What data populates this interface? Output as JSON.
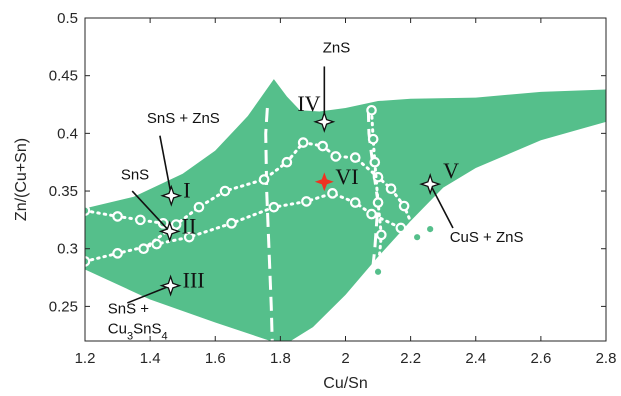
{
  "chart_data": {
    "type": "scatter",
    "xlabel": "Cu/Sn",
    "ylabel": "Zn/(Cu+Sn)",
    "xlim": [
      1.2,
      2.8
    ],
    "ylim": [
      0.22,
      0.5
    ],
    "x_ticks": [
      "1.2",
      "1.4",
      "1.6",
      "1.8",
      "2",
      "2.2",
      "2.4",
      "2.6",
      "2.8"
    ],
    "y_ticks": [
      "0.25",
      "0.3",
      "0.35",
      "0.4",
      "0.45",
      "0.5"
    ],
    "grid": false,
    "colors": {
      "region": "#55bf8b",
      "boundary": "#ffffff",
      "center_marker": "#ee3322",
      "markers": "#ffffff"
    },
    "region_upper": [
      [
        1.2,
        0.335
      ],
      [
        1.35,
        0.345
      ],
      [
        1.5,
        0.365
      ],
      [
        1.6,
        0.385
      ],
      [
        1.7,
        0.415
      ],
      [
        1.78,
        0.447
      ],
      [
        1.82,
        0.432
      ],
      [
        1.86,
        0.42
      ],
      [
        1.92,
        0.419
      ],
      [
        2.0,
        0.422
      ],
      [
        2.1,
        0.428
      ],
      [
        2.2,
        0.43
      ],
      [
        2.4,
        0.431
      ],
      [
        2.6,
        0.436
      ],
      [
        2.8,
        0.438
      ]
    ],
    "region_lower": [
      [
        2.8,
        0.41
      ],
      [
        2.6,
        0.394
      ],
      [
        2.4,
        0.37
      ],
      [
        2.3,
        0.353
      ],
      [
        2.2,
        0.324
      ],
      [
        2.1,
        0.293
      ],
      [
        2.0,
        0.26
      ],
      [
        1.9,
        0.232
      ],
      [
        1.82,
        0.218
      ],
      [
        1.77,
        0.22
      ],
      [
        1.6,
        0.236
      ],
      [
        1.4,
        0.256
      ],
      [
        1.2,
        0.282
      ]
    ],
    "dashed_boundaries": [
      [
        [
          1.76,
          0.422
        ],
        [
          1.755,
          0.4
        ],
        [
          1.758,
          0.35
        ],
        [
          1.765,
          0.3
        ],
        [
          1.772,
          0.25
        ],
        [
          1.775,
          0.22
        ]
      ],
      [
        [
          2.07,
          0.422
        ],
        [
          2.072,
          0.4
        ],
        [
          2.085,
          0.37
        ],
        [
          2.1,
          0.34
        ],
        [
          2.09,
          0.3
        ],
        [
          2.075,
          0.26
        ],
        [
          2.065,
          0.22
        ]
      ]
    ],
    "series": [
      {
        "values": [
          [
            1.2,
            0.333
          ],
          [
            1.3,
            0.328
          ],
          [
            1.37,
            0.325
          ],
          [
            1.44,
            0.322
          ],
          [
            1.47,
            0.318
          ]
        ]
      },
      {
        "values": [
          [
            1.2,
            0.289
          ],
          [
            1.3,
            0.296
          ],
          [
            1.42,
            0.304
          ],
          [
            1.52,
            0.31
          ],
          [
            1.65,
            0.322
          ],
          [
            1.78,
            0.336
          ],
          [
            1.88,
            0.341
          ],
          [
            1.96,
            0.348
          ],
          [
            2.03,
            0.34
          ],
          [
            2.08,
            0.33
          ],
          [
            2.17,
            0.318
          ],
          [
            2.26,
            0.317
          ]
        ]
      },
      {
        "values": [
          [
            1.38,
            0.3
          ],
          [
            1.48,
            0.321
          ],
          [
            1.55,
            0.336
          ],
          [
            1.63,
            0.35
          ],
          [
            1.75,
            0.36
          ],
          [
            1.82,
            0.375
          ],
          [
            1.87,
            0.392
          ],
          [
            1.93,
            0.389
          ],
          [
            1.97,
            0.38
          ],
          [
            2.03,
            0.379
          ],
          [
            2.1,
            0.362
          ],
          [
            2.14,
            0.352
          ],
          [
            2.18,
            0.337
          ],
          [
            2.22,
            0.31
          ]
        ]
      },
      {
        "values": [
          [
            2.08,
            0.42
          ],
          [
            2.085,
            0.395
          ],
          [
            2.09,
            0.375
          ],
          [
            2.1,
            0.34
          ],
          [
            2.11,
            0.312
          ],
          [
            2.1,
            0.28
          ]
        ]
      }
    ],
    "star_markers": [
      {
        "label": "I",
        "x": 1.465,
        "y": 0.346
      },
      {
        "label": "II",
        "x": 1.46,
        "y": 0.315
      },
      {
        "label": "III",
        "x": 1.463,
        "y": 0.268
      },
      {
        "label": "IV",
        "x": 1.935,
        "y": 0.41
      },
      {
        "label": "V",
        "x": 2.26,
        "y": 0.356
      }
    ],
    "center_marker": {
      "label": "VI",
      "x": 1.935,
      "y": 0.358
    },
    "annotations": [
      {
        "lines": [
          "SnS + ZnS"
        ],
        "x": 1.39,
        "y": 0.409,
        "target_x": 1.465,
        "target_y": 0.346,
        "from_x": 1.43,
        "from_y": 0.398
      },
      {
        "lines": [
          "SnS"
        ],
        "x": 1.31,
        "y": 0.36,
        "target_x": 1.46,
        "target_y": 0.315,
        "from_x": 1.345,
        "from_y": 0.35
      },
      {
        "lines": [
          "ZnS"
        ],
        "x": 1.93,
        "y": 0.47,
        "target_x": 1.935,
        "target_y": 0.41,
        "from_x": 1.935,
        "from_y": 0.458
      },
      {
        "lines": [
          "CuS + ZnS"
        ],
        "x": 2.32,
        "y": 0.306,
        "target_x": 2.26,
        "target_y": 0.356,
        "from_x": 2.33,
        "from_y": 0.318
      },
      {
        "lines": [
          "SnS +",
          "Cu3SnS4"
        ],
        "x": 1.27,
        "y": 0.244,
        "target_x": 1.463,
        "target_y": 0.268,
        "from_x": 1.33,
        "from_y": 0.253
      }
    ]
  }
}
